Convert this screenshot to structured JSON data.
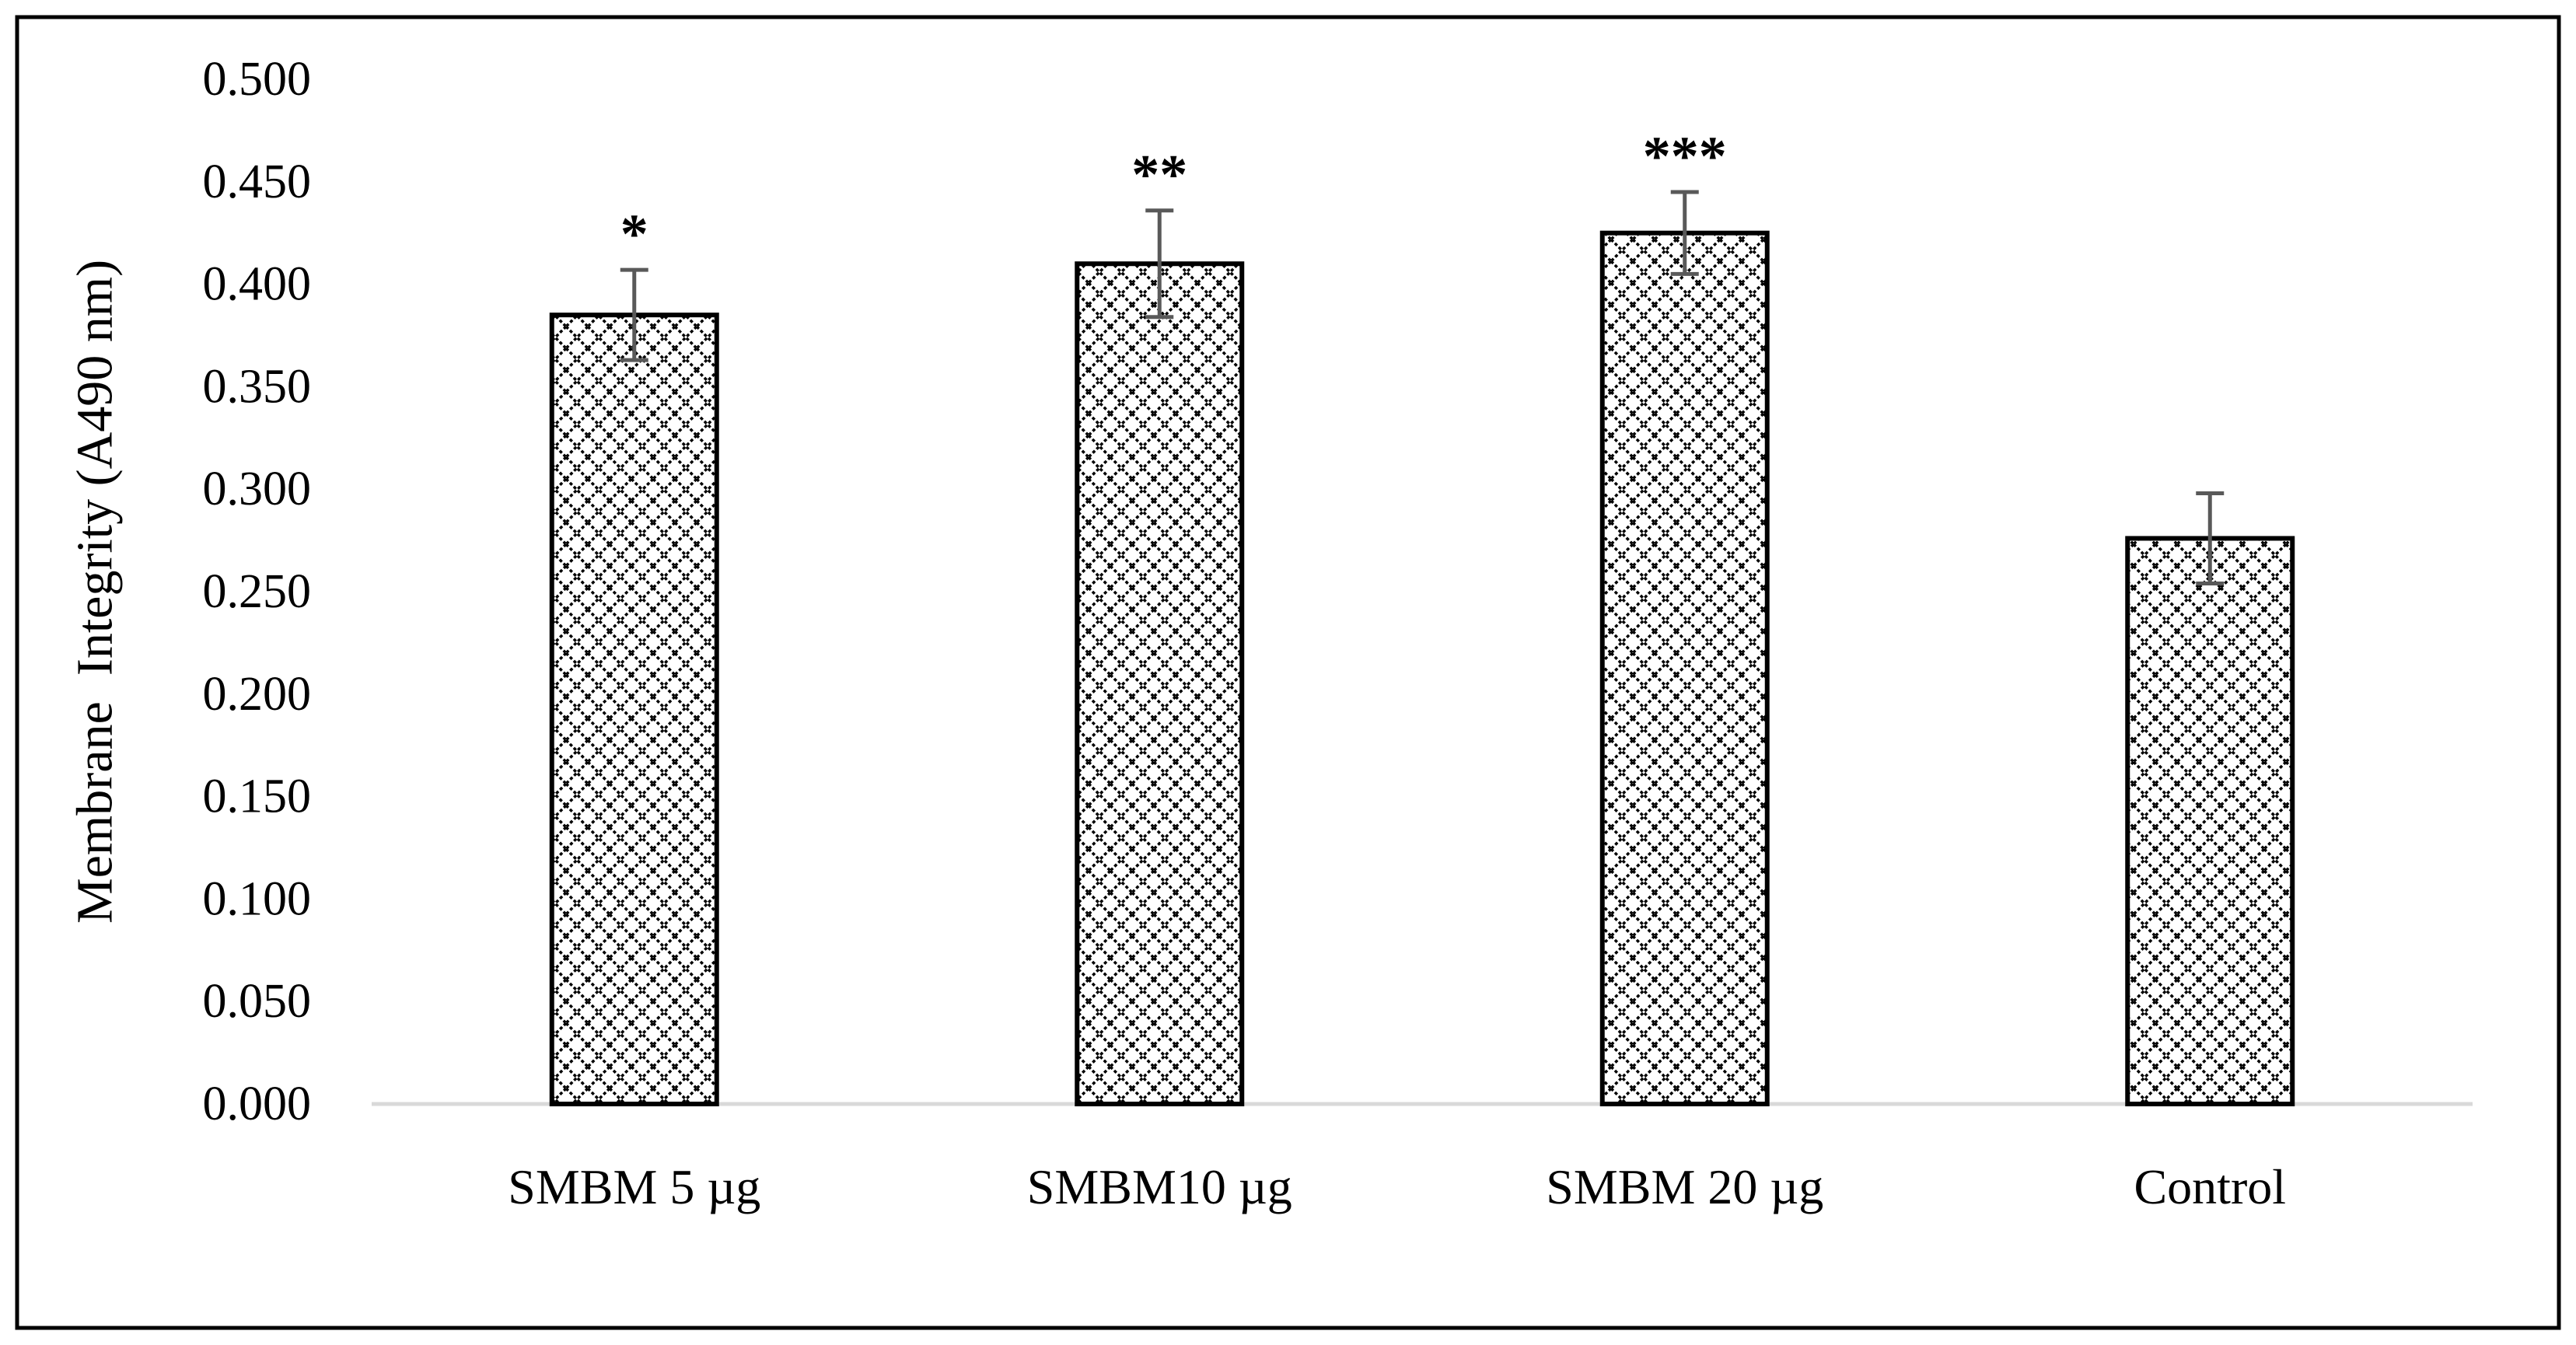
{
  "chart_data": {
    "type": "bar",
    "title": "",
    "xlabel": "",
    "ylabel": "Membrane  Integrity (A490 nm)",
    "ylim": [
      0,
      0.5
    ],
    "ytick_step": 0.05,
    "ytick_labels": [
      "0.000",
      "0.050",
      "0.100",
      "0.150",
      "0.200",
      "0.250",
      "0.300",
      "0.350",
      "0.400",
      "0.450",
      "0.500"
    ],
    "grid": false,
    "legend": "none",
    "categories": [
      "SMBM 5 µg",
      "SMBM10 µg",
      "SMBM 20 µg",
      "Control"
    ],
    "series": [
      {
        "name": "Membrane Integrity",
        "values": [
          0.385,
          0.41,
          0.425,
          0.276
        ],
        "errors": [
          0.022,
          0.026,
          0.02,
          0.022
        ],
        "significance": [
          "*",
          "**",
          "***",
          ""
        ]
      }
    ],
    "colors": {
      "bar_stroke": "#000000",
      "bar_pattern": "#000000",
      "bar_background": "#ffffff",
      "error_bar": "#595959",
      "axis_line": "#d9d9d9",
      "frame": "#000000"
    }
  }
}
